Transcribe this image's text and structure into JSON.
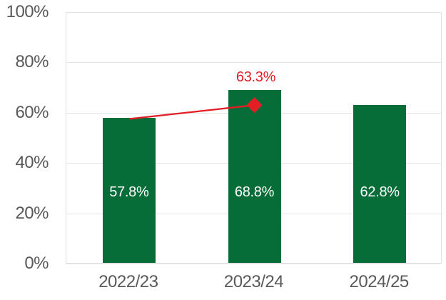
{
  "page": {
    "background": "#FFFFFF"
  },
  "chart_data": {
    "type": "bar",
    "title": "",
    "legend": false,
    "grid": true,
    "categories": [
      "2022/23",
      "2023/24",
      "2024/25"
    ],
    "series": [
      {
        "type": "bar",
        "values": [
          57.8,
          68.8,
          62.8
        ],
        "data_labels": [
          "57.8%",
          "68.8%",
          "62.8%"
        ],
        "color": "#066C38",
        "data_label_color": "#FFFFFF"
      },
      {
        "type": "line",
        "x": [
          "2022/23",
          "2023/24"
        ],
        "values": [
          57.8,
          63.3
        ],
        "color": "#E31E25",
        "marker": "diamond",
        "marker_color": "#E31E25",
        "marker_on": "2023/24",
        "data_label": "63.3%",
        "data_label_color": "#E31E25"
      }
    ],
    "ylim": [
      0,
      100
    ],
    "ytick_values": [
      0,
      20,
      40,
      60,
      80,
      100
    ],
    "ytick_labels": [
      "0%",
      "20%",
      "40%",
      "60%",
      "80%",
      "100%"
    ],
    "axis_text_color": "#595959",
    "gridline_color": "#E4E4E4",
    "plot_border_color": "#E0E0E0"
  }
}
